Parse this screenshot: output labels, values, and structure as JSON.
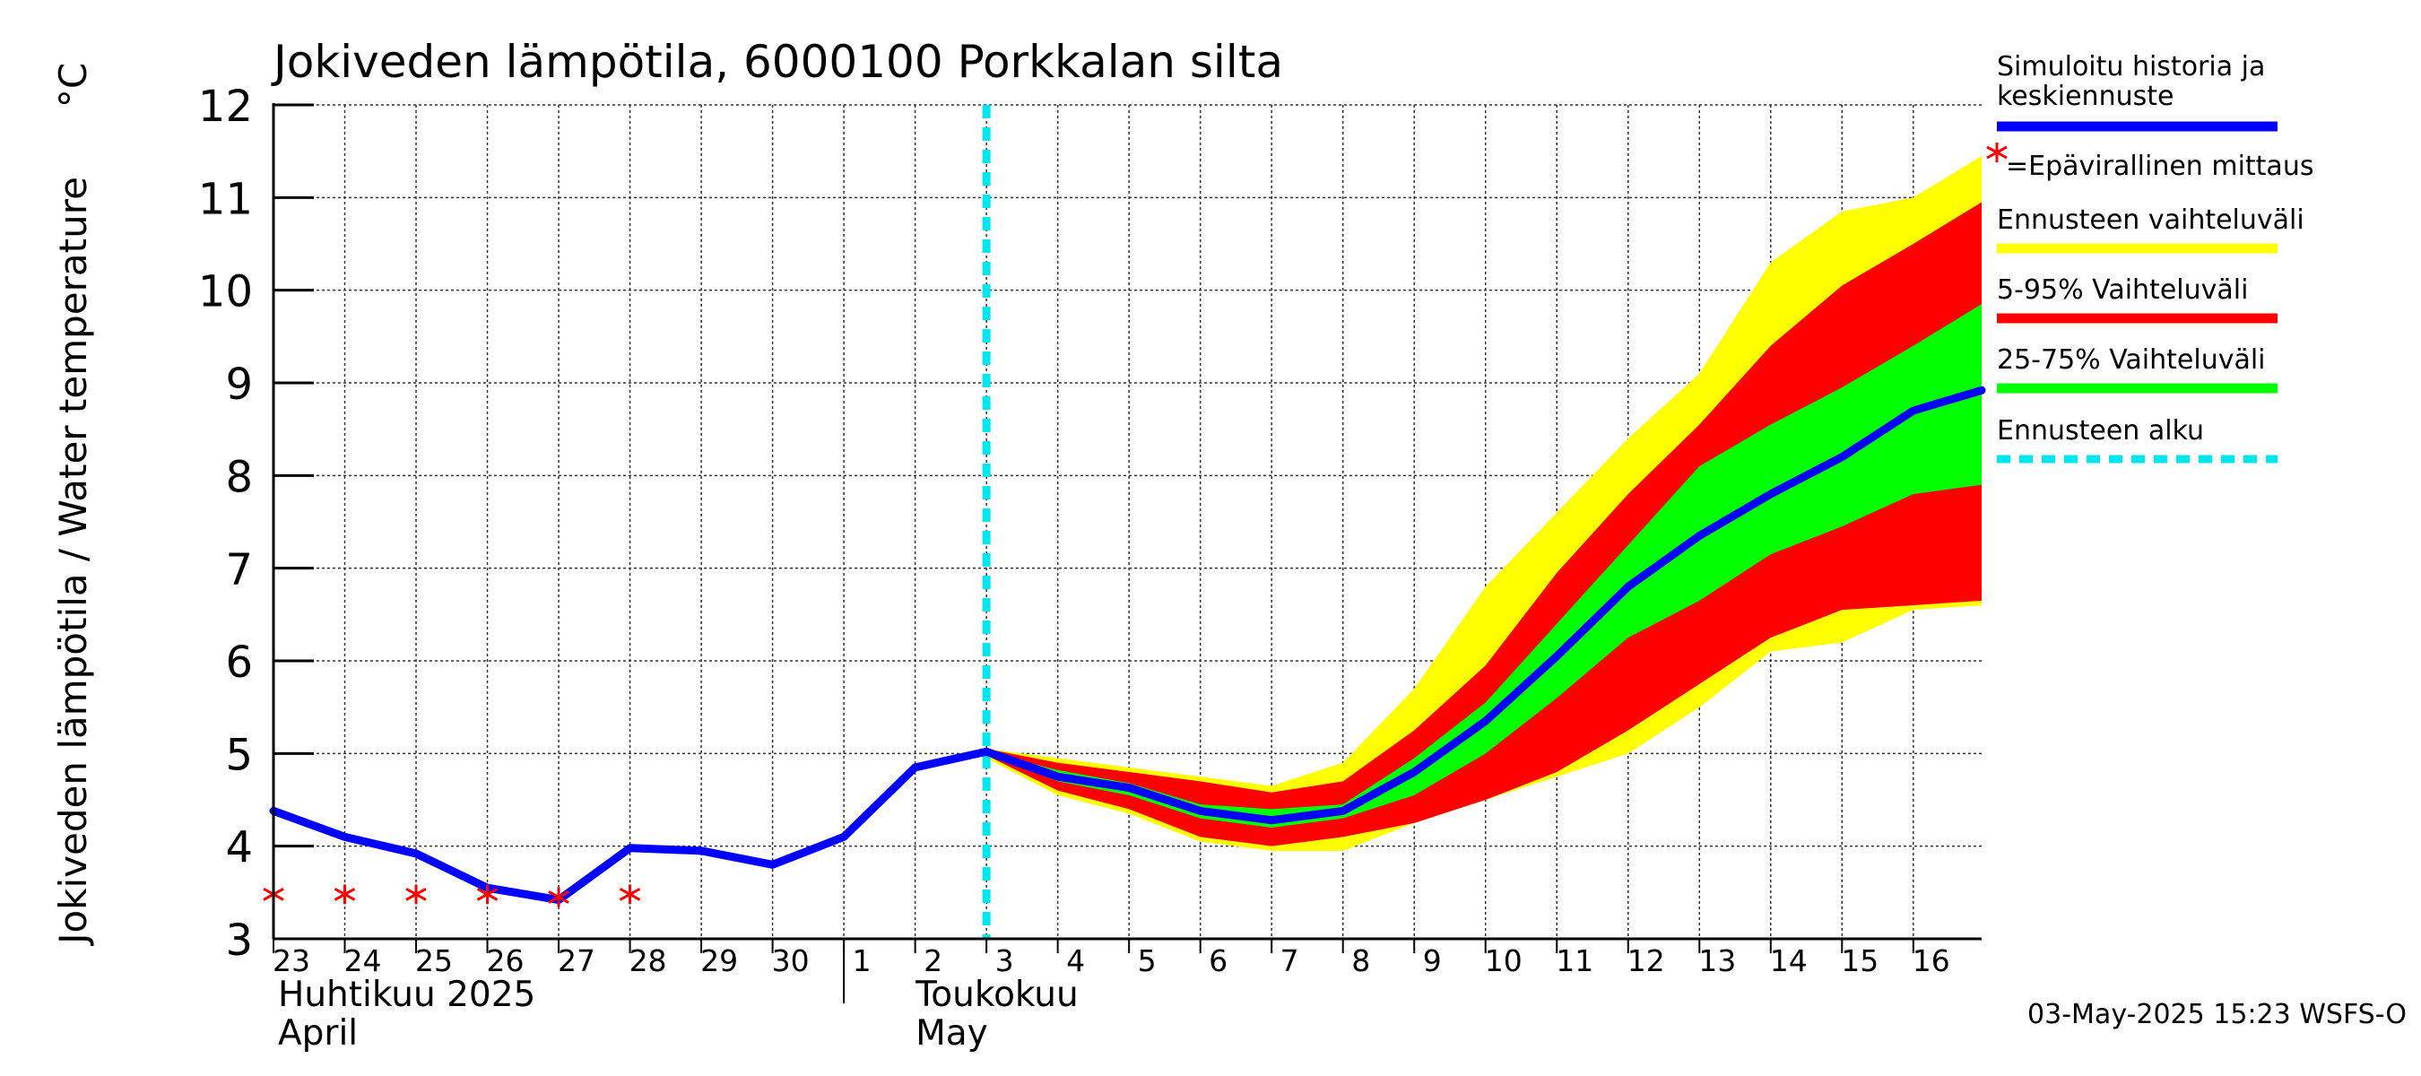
{
  "chart_data": {
    "type": "line",
    "title": "Jokiveden lämpötila, 6000100 Porkkalan silta",
    "ylabel": "Jokiveden lämpötila / Water temperature",
    "yunit": "°C",
    "ylim": [
      3,
      12
    ],
    "yticks": [
      "3",
      "4",
      "5",
      "6",
      "7",
      "8",
      "9",
      "10",
      "11",
      "12"
    ],
    "xlim": [
      "2025-04-23",
      "2025-05-16T23:00"
    ],
    "xticks": [
      {
        "label": "23",
        "date": "2025-04-23"
      },
      {
        "label": "24",
        "date": "2025-04-24"
      },
      {
        "label": "25",
        "date": "2025-04-25"
      },
      {
        "label": "26",
        "date": "2025-04-26"
      },
      {
        "label": "27",
        "date": "2025-04-27"
      },
      {
        "label": "28",
        "date": "2025-04-28"
      },
      {
        "label": "29",
        "date": "2025-04-29"
      },
      {
        "label": "30",
        "date": "2025-04-30"
      },
      {
        "label": "1",
        "date": "2025-05-01"
      },
      {
        "label": "2",
        "date": "2025-05-02"
      },
      {
        "label": "3",
        "date": "2025-05-03"
      },
      {
        "label": "4",
        "date": "2025-05-04"
      },
      {
        "label": "5",
        "date": "2025-05-05"
      },
      {
        "label": "6",
        "date": "2025-05-06"
      },
      {
        "label": "7",
        "date": "2025-05-07"
      },
      {
        "label": "8",
        "date": "2025-05-08"
      },
      {
        "label": "9",
        "date": "2025-05-09"
      },
      {
        "label": "10",
        "date": "2025-05-10"
      },
      {
        "label": "11",
        "date": "2025-05-11"
      },
      {
        "label": "12",
        "date": "2025-05-12"
      },
      {
        "label": "13",
        "date": "2025-05-13"
      },
      {
        "label": "14",
        "date": "2025-05-14"
      },
      {
        "label": "15",
        "date": "2025-05-15"
      },
      {
        "label": "16",
        "date": "2025-05-16"
      }
    ],
    "month_labels": [
      {
        "fi": "Huhtikuu  2025",
        "en": "April",
        "date": "2025-04-23"
      },
      {
        "fi": "Toukokuu",
        "en": "May",
        "date": "2025-05-01"
      }
    ],
    "grid": true,
    "legend_position": "right",
    "forecast_start": "2025-05-03",
    "x": [
      "2025-04-23",
      "2025-04-24",
      "2025-04-25",
      "2025-04-26",
      "2025-04-27",
      "2025-04-28",
      "2025-04-29",
      "2025-04-30",
      "2025-05-01",
      "2025-05-02",
      "2025-05-03",
      "2025-05-04",
      "2025-05-05",
      "2025-05-06",
      "2025-05-07",
      "2025-05-08",
      "2025-05-09",
      "2025-05-10",
      "2025-05-11",
      "2025-05-12",
      "2025-05-13",
      "2025-05-14",
      "2025-05-15",
      "2025-05-16",
      "2025-05-16T23:00"
    ],
    "series": [
      {
        "name": "Ennusteen vaihteluväli",
        "kind": "band",
        "color": "#ffff00",
        "x": [
          "2025-05-03",
          "2025-05-04",
          "2025-05-05",
          "2025-05-06",
          "2025-05-07",
          "2025-05-08",
          "2025-05-09",
          "2025-05-10",
          "2025-05-11",
          "2025-05-12",
          "2025-05-13",
          "2025-05-14",
          "2025-05-15",
          "2025-05-16",
          "2025-05-16T23:00"
        ],
        "upper": [
          5.05,
          4.95,
          4.85,
          4.75,
          4.65,
          4.9,
          5.7,
          6.8,
          7.6,
          8.4,
          9.1,
          10.3,
          10.85,
          11.0,
          11.45
        ],
        "lower": [
          4.95,
          4.55,
          4.35,
          4.05,
          3.95,
          3.95,
          4.25,
          4.5,
          4.75,
          5.0,
          5.5,
          6.1,
          6.2,
          6.55,
          6.6
        ]
      },
      {
        "name": "5-95% Vaihteluväli",
        "kind": "band",
        "color": "#ff0000",
        "x": [
          "2025-05-03",
          "2025-05-04",
          "2025-05-05",
          "2025-05-06",
          "2025-05-07",
          "2025-05-08",
          "2025-05-09",
          "2025-05-10",
          "2025-05-11",
          "2025-05-12",
          "2025-05-13",
          "2025-05-14",
          "2025-05-15",
          "2025-05-16",
          "2025-05-16T23:00"
        ],
        "upper": [
          5.05,
          4.9,
          4.8,
          4.7,
          4.58,
          4.7,
          5.25,
          5.95,
          6.95,
          7.8,
          8.55,
          9.4,
          10.05,
          10.5,
          10.95
        ],
        "lower": [
          4.98,
          4.6,
          4.4,
          4.1,
          4.0,
          4.1,
          4.25,
          4.5,
          4.8,
          5.25,
          5.75,
          6.25,
          6.55,
          6.6,
          6.65
        ]
      },
      {
        "name": "25-75% Vaihteluväli",
        "kind": "band",
        "color": "#00ff00",
        "x": [
          "2025-05-03",
          "2025-05-04",
          "2025-05-05",
          "2025-05-06",
          "2025-05-07",
          "2025-05-08",
          "2025-05-09",
          "2025-05-10",
          "2025-05-11",
          "2025-05-12",
          "2025-05-13",
          "2025-05-14",
          "2025-05-15",
          "2025-05-16",
          "2025-05-16T23:00"
        ],
        "upper": [
          5.02,
          4.82,
          4.68,
          4.45,
          4.4,
          4.45,
          4.95,
          5.55,
          6.4,
          7.25,
          8.1,
          8.55,
          8.95,
          9.4,
          9.85
        ],
        "lower": [
          5.0,
          4.7,
          4.55,
          4.3,
          4.2,
          4.3,
          4.55,
          5.0,
          5.6,
          6.25,
          6.65,
          7.15,
          7.45,
          7.8,
          7.9
        ]
      },
      {
        "name": "Simuloitu historia ja keskiennuste",
        "kind": "line",
        "color": "#0000ff",
        "values": [
          4.38,
          4.1,
          3.92,
          3.55,
          3.42,
          3.98,
          3.95,
          3.8,
          4.1,
          4.85,
          5.02,
          4.75,
          4.63,
          4.38,
          4.28,
          4.38,
          4.8,
          5.35,
          6.05,
          6.8,
          7.35,
          7.8,
          8.2,
          8.7,
          8.92
        ]
      },
      {
        "name": "=Epävirallinen mittaus",
        "kind": "markers",
        "color": "#ff0000",
        "x": [
          "2025-04-23",
          "2025-04-24",
          "2025-04-25",
          "2025-04-26",
          "2025-04-27",
          "2025-04-28"
        ],
        "values": [
          3.48,
          3.48,
          3.48,
          3.48,
          3.45,
          3.48
        ]
      }
    ]
  },
  "legend": {
    "items": [
      {
        "label_lines": [
          "Simuloitu historia ja",
          "keskiennuste"
        ],
        "color": "#0000ff",
        "style": "line"
      },
      {
        "label_lines": [
          "=Epävirallinen mittaus"
        ],
        "color": "#ff0000",
        "style": "marker"
      },
      {
        "label_lines": [
          "Ennusteen vaihteluväli"
        ],
        "color": "#ffff00",
        "style": "line"
      },
      {
        "label_lines": [
          "5-95% Vaihteluväli"
        ],
        "color": "#ff0000",
        "style": "line"
      },
      {
        "label_lines": [
          "25-75% Vaihteluväli"
        ],
        "color": "#00ff00",
        "style": "line"
      },
      {
        "label_lines": [
          "Ennusteen alku"
        ],
        "color": "#00e5ee",
        "style": "dashed"
      }
    ]
  },
  "footer": {
    "timestamp": "03-May-2025 15:23 WSFS-O"
  }
}
